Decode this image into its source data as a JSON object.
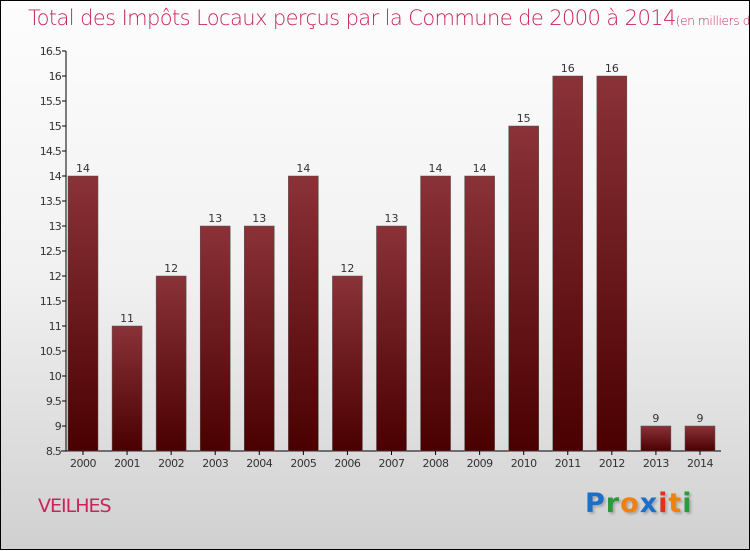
{
  "title": "Total des Impôts Locaux perçus par la Commune de 2000 à 2014",
  "subtitle": "(en milliers d'€)",
  "commune": "VEILHES",
  "logo": "Proxiti",
  "colors": {
    "bar_top": "#8a3238",
    "bar_bottom": "#4a0000",
    "title": "#c8255a"
  },
  "chart_data": {
    "type": "bar",
    "title": "Total des Impôts Locaux perçus par la Commune de 2000 à 2014",
    "ylabel": "en milliers d'€",
    "categories": [
      "2000",
      "2001",
      "2002",
      "2003",
      "2004",
      "2005",
      "2006",
      "2007",
      "2008",
      "2009",
      "2010",
      "2011",
      "2012",
      "2013",
      "2014"
    ],
    "values": [
      14,
      11,
      12,
      13,
      13,
      14,
      12,
      13,
      14,
      14,
      15,
      16,
      16,
      9,
      9
    ],
    "labels": [
      "14",
      "11",
      "12",
      "13",
      "13",
      "14",
      "12",
      "13",
      "14",
      "14",
      "15",
      "16",
      "16",
      "9",
      "9"
    ],
    "ylim": [
      8.5,
      16.5
    ],
    "yticks": [
      "8.5",
      "9",
      "9.5",
      "10",
      "10.5",
      "11",
      "11.5",
      "12",
      "12.5",
      "13",
      "13.5",
      "14",
      "14.5",
      "15",
      "15.5",
      "16",
      "16.5"
    ],
    "grid": false
  }
}
